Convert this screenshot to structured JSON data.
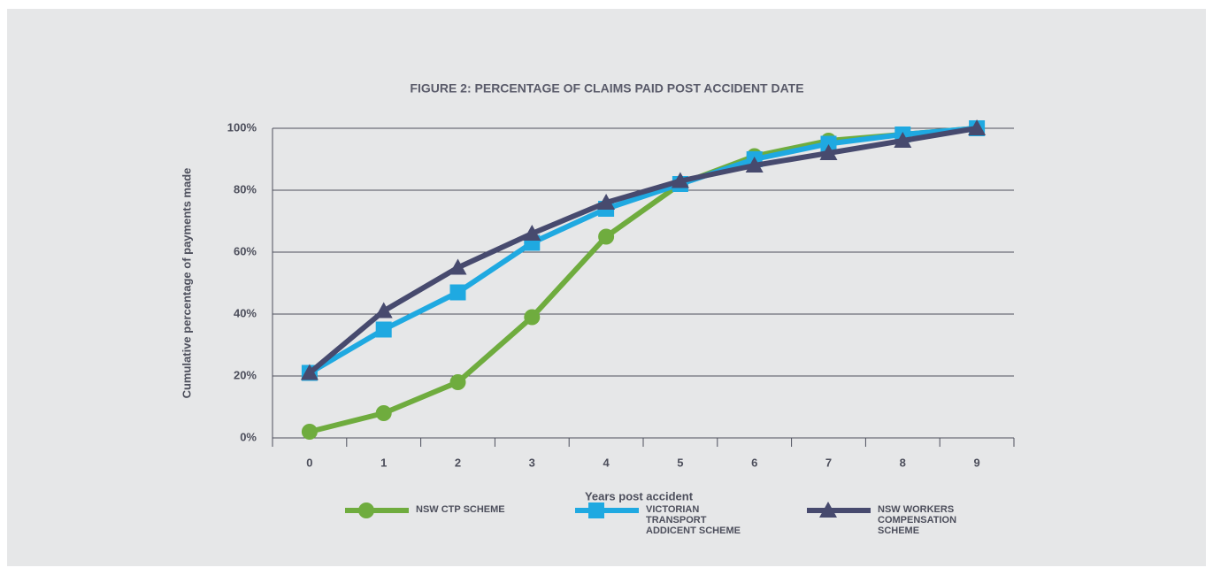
{
  "chart_data": {
    "type": "line",
    "title": "FIGURE 2: PERCENTAGE OF CLAIMS PAID POST ACCIDENT DATE",
    "x_label": "Years post accident",
    "y_label": "Cumulative percentage of payments made",
    "categories": [
      "0",
      "1",
      "2",
      "3",
      "4",
      "5",
      "6",
      "7",
      "8",
      "9"
    ],
    "series": [
      {
        "name": "NSW CTP SCHEME",
        "color": "#6fac3e",
        "marker": "circle",
        "values": [
          2,
          8,
          18,
          39,
          65,
          82,
          91,
          96,
          98,
          100
        ]
      },
      {
        "name": "VICTORIAN TRANSPORT ADDICENT SCHEME",
        "color": "#1fa9e1",
        "marker": "square",
        "values": [
          21,
          35,
          47,
          63,
          74,
          82,
          90,
          95,
          98,
          100
        ]
      },
      {
        "name": "NSW WORKERS COMPENSATION SCHEME",
        "color": "#474a6e",
        "marker": "triangle",
        "values": [
          21,
          41,
          55,
          66,
          76,
          83,
          88,
          92,
          96,
          100
        ]
      }
    ],
    "ylim": [
      0,
      100
    ],
    "yticks": [
      {
        "value": 0,
        "label": "0%"
      },
      {
        "value": 20,
        "label": "20%"
      },
      {
        "value": 40,
        "label": "40%"
      },
      {
        "value": 60,
        "label": "60%"
      },
      {
        "value": 80,
        "label": "80%"
      },
      {
        "value": 100,
        "label": "100%"
      }
    ],
    "grid": true
  }
}
